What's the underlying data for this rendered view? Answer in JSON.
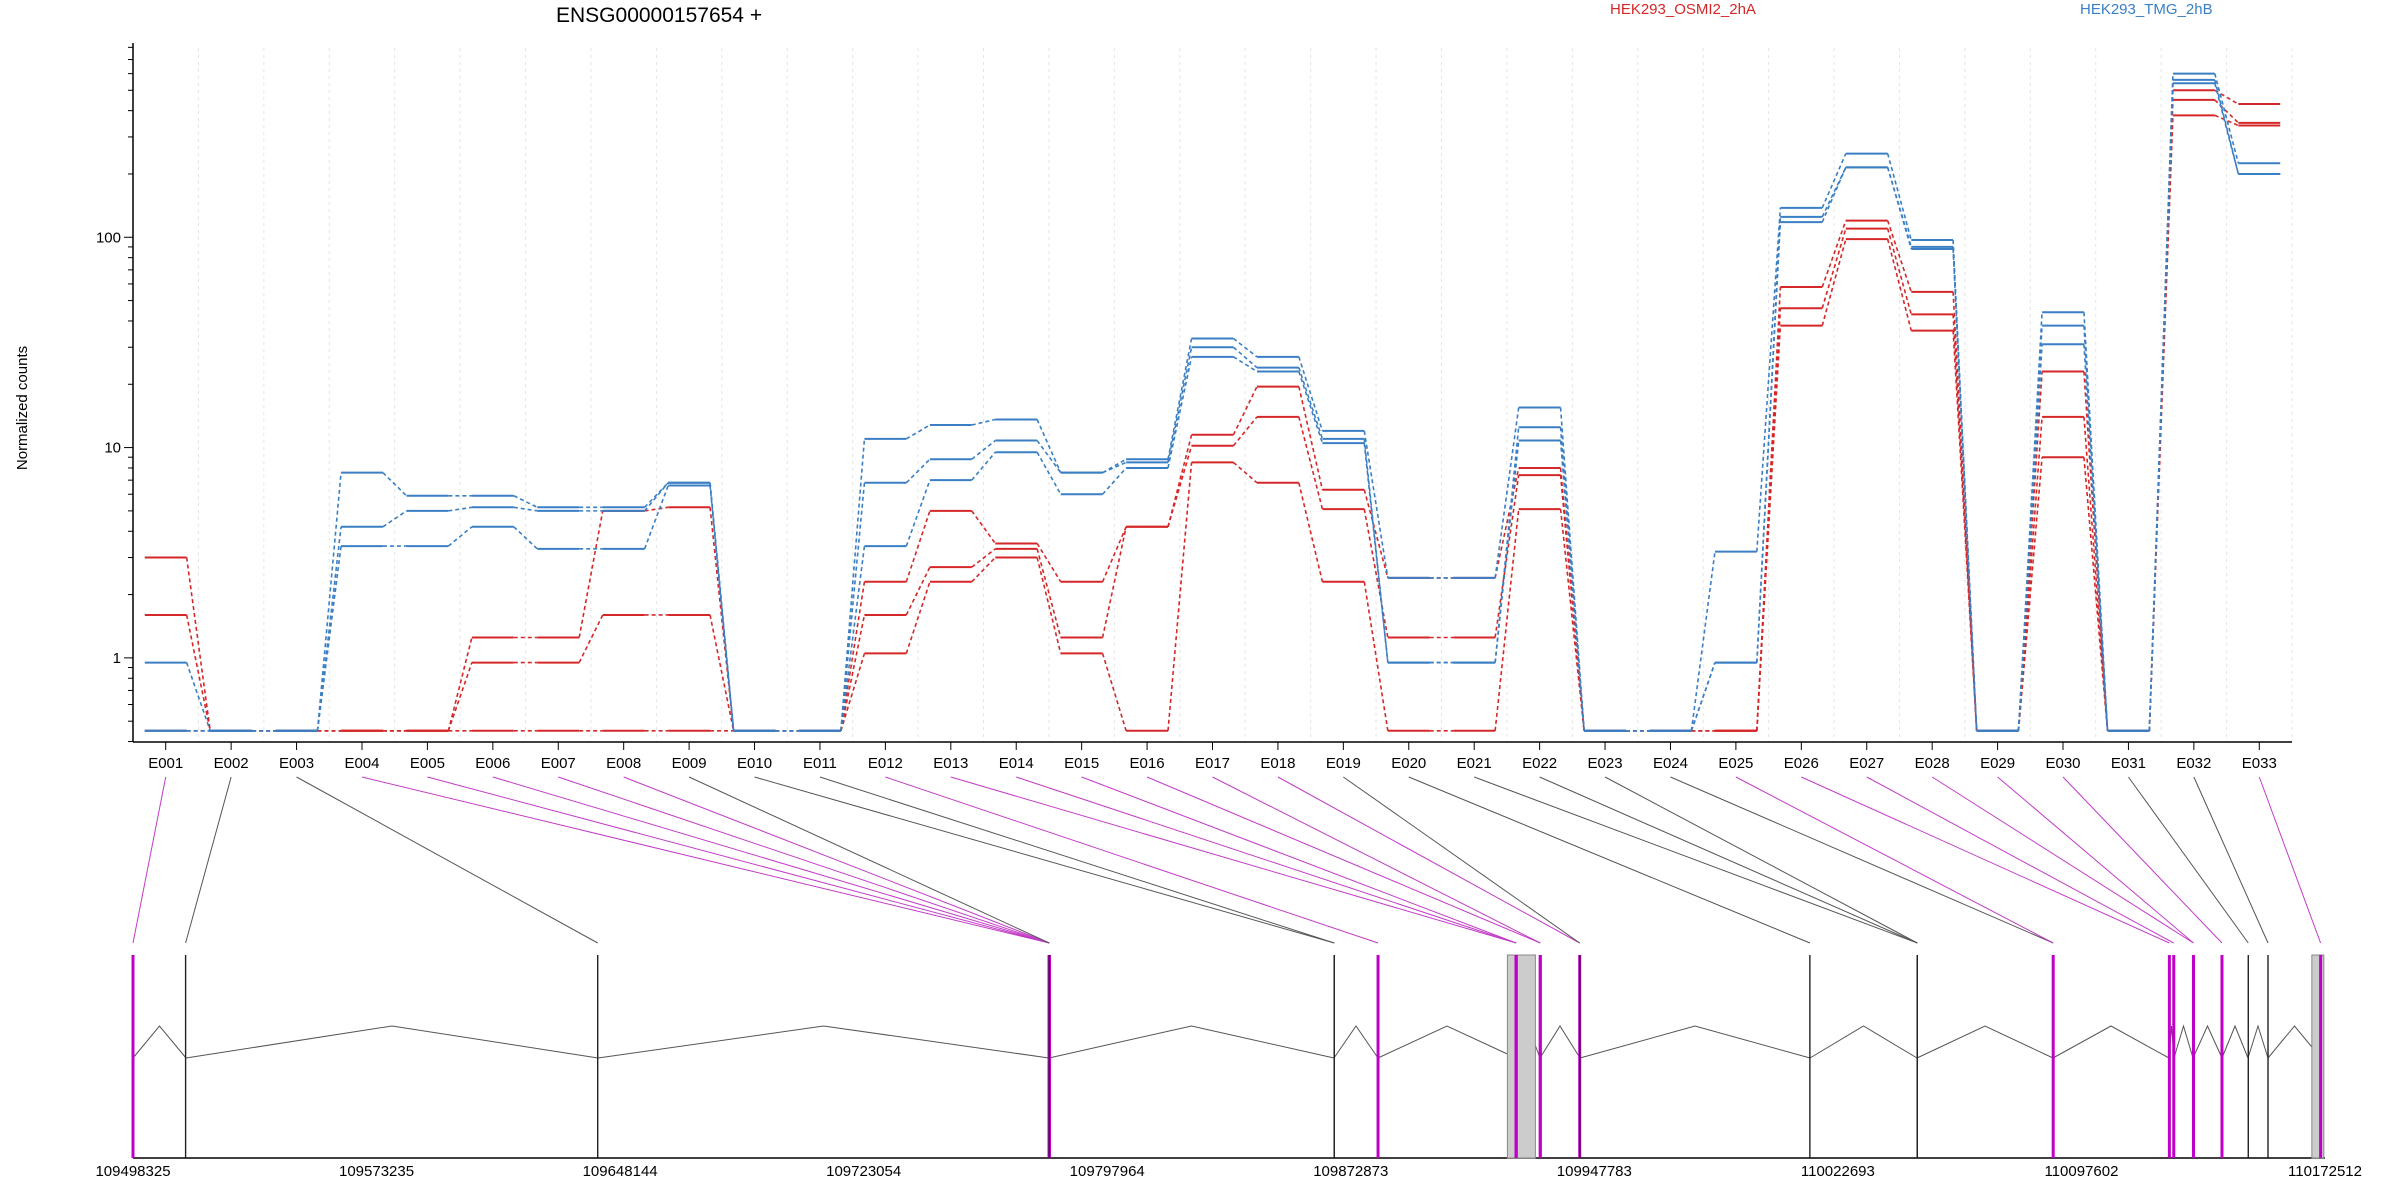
{
  "chart_data": {
    "type": "line",
    "title": "ENSG00000157654 +",
    "ylabel": "Normalized counts",
    "yscale": "log",
    "ylim": [
      0.4,
      800
    ],
    "yticks": [
      1,
      10,
      100
    ],
    "ytick_labels": [
      "1",
      "10",
      "100"
    ],
    "grid": "vertical dotted",
    "legend_placement": "top-right",
    "legend": [
      {
        "name": "HEK293_OSMI2_2hA",
        "color": "#d62728"
      },
      {
        "name": "HEK293_TMG_2hB",
        "color": "#3a7fc4"
      }
    ],
    "categories": [
      "E001",
      "E002",
      "E003",
      "E004",
      "E005",
      "E006",
      "E007",
      "E008",
      "E009",
      "E010",
      "E011",
      "E012",
      "E013",
      "E014",
      "E015",
      "E016",
      "E017",
      "E018",
      "E019",
      "E020",
      "E021",
      "E022",
      "E023",
      "E024",
      "E025",
      "E026",
      "E027",
      "E028",
      "E029",
      "E030",
      "E031",
      "E032",
      "E033"
    ],
    "series": [
      {
        "group": "HEK293_OSMI2_2hA",
        "color": "#d62728",
        "values": [
          3.0,
          0.45,
          0.45,
          0.45,
          0.45,
          1.25,
          1.25,
          5.0,
          5.2,
          0.45,
          0.45,
          2.3,
          5.0,
          3.5,
          2.3,
          4.2,
          11.5,
          19.5,
          6.3,
          2.4,
          2.4,
          8.0,
          0.45,
          0.45,
          0.45,
          58,
          120,
          55,
          0.45,
          23,
          0.45,
          500,
          430
        ]
      },
      {
        "group": "HEK293_OSMI2_2hA",
        "color": "#d62728",
        "values": [
          1.6,
          0.45,
          0.45,
          0.45,
          0.45,
          0.95,
          0.95,
          1.6,
          1.6,
          0.45,
          0.45,
          1.6,
          2.7,
          3.3,
          1.25,
          4.2,
          10.2,
          14,
          5.1,
          1.25,
          1.25,
          7.4,
          0.45,
          0.45,
          0.45,
          46,
          110,
          43,
          0.45,
          14,
          0.45,
          450,
          350
        ]
      },
      {
        "group": "HEK293_OSMI2_2hA",
        "color": "#d62728",
        "values": [
          0.45,
          0.45,
          0.45,
          0.45,
          0.45,
          0.45,
          0.45,
          0.45,
          0.45,
          0.45,
          0.45,
          1.05,
          2.3,
          3.0,
          1.05,
          0.45,
          8.5,
          6.8,
          2.3,
          0.45,
          0.45,
          5.1,
          0.45,
          0.45,
          0.45,
          38,
          98,
          36,
          0.45,
          9,
          0.45,
          380,
          340
        ]
      },
      {
        "group": "HEK293_TMG_2hB",
        "color": "#3a7fc4",
        "values": [
          0.95,
          0.45,
          0.45,
          7.6,
          5.9,
          5.9,
          5.2,
          5.2,
          6.8,
          0.45,
          0.45,
          11,
          12.8,
          13.6,
          7.6,
          8.8,
          33,
          27,
          12,
          2.4,
          2.4,
          15.5,
          0.45,
          0.45,
          3.2,
          138,
          250,
          97,
          0.45,
          44,
          0.45,
          600,
          225
        ]
      },
      {
        "group": "HEK293_TMG_2hB",
        "color": "#3a7fc4",
        "values": [
          0.45,
          0.45,
          0.45,
          4.2,
          5.0,
          5.2,
          5.0,
          5.0,
          6.8,
          0.45,
          0.45,
          6.8,
          8.8,
          10.8,
          7.6,
          8.5,
          30,
          24,
          11,
          0.95,
          0.95,
          12.5,
          0.45,
          0.45,
          0.95,
          125,
          215,
          90,
          0.45,
          38,
          0.45,
          560,
          200
        ]
      },
      {
        "group": "HEK293_TMG_2hB",
        "color": "#3a7fc4",
        "values": [
          0.45,
          0.45,
          0.45,
          3.4,
          3.4,
          4.2,
          3.3,
          3.3,
          6.6,
          0.45,
          0.45,
          3.4,
          7.0,
          9.5,
          6.0,
          8.0,
          27,
          23,
          10.5,
          0.95,
          0.95,
          10.8,
          0.45,
          0.45,
          0.95,
          118,
          215,
          88,
          0.45,
          31,
          0.45,
          540,
          200
        ]
      }
    ],
    "genomic_axis": {
      "labels": [
        "109498325",
        "109573235",
        "109648144",
        "109723054",
        "109797964",
        "109872873",
        "109947783",
        "110022693",
        "110097602",
        "110172512"
      ]
    },
    "gene_model": {
      "start": 109498325,
      "end": 110172512,
      "highlighted_exons": [
        "E001",
        "E004",
        "E005",
        "E006",
        "E007",
        "E008",
        "E012",
        "E013",
        "E014",
        "E015",
        "E016",
        "E017",
        "E018",
        "E025",
        "E026",
        "E027",
        "E028",
        "E029",
        "E030",
        "E033"
      ]
    }
  }
}
